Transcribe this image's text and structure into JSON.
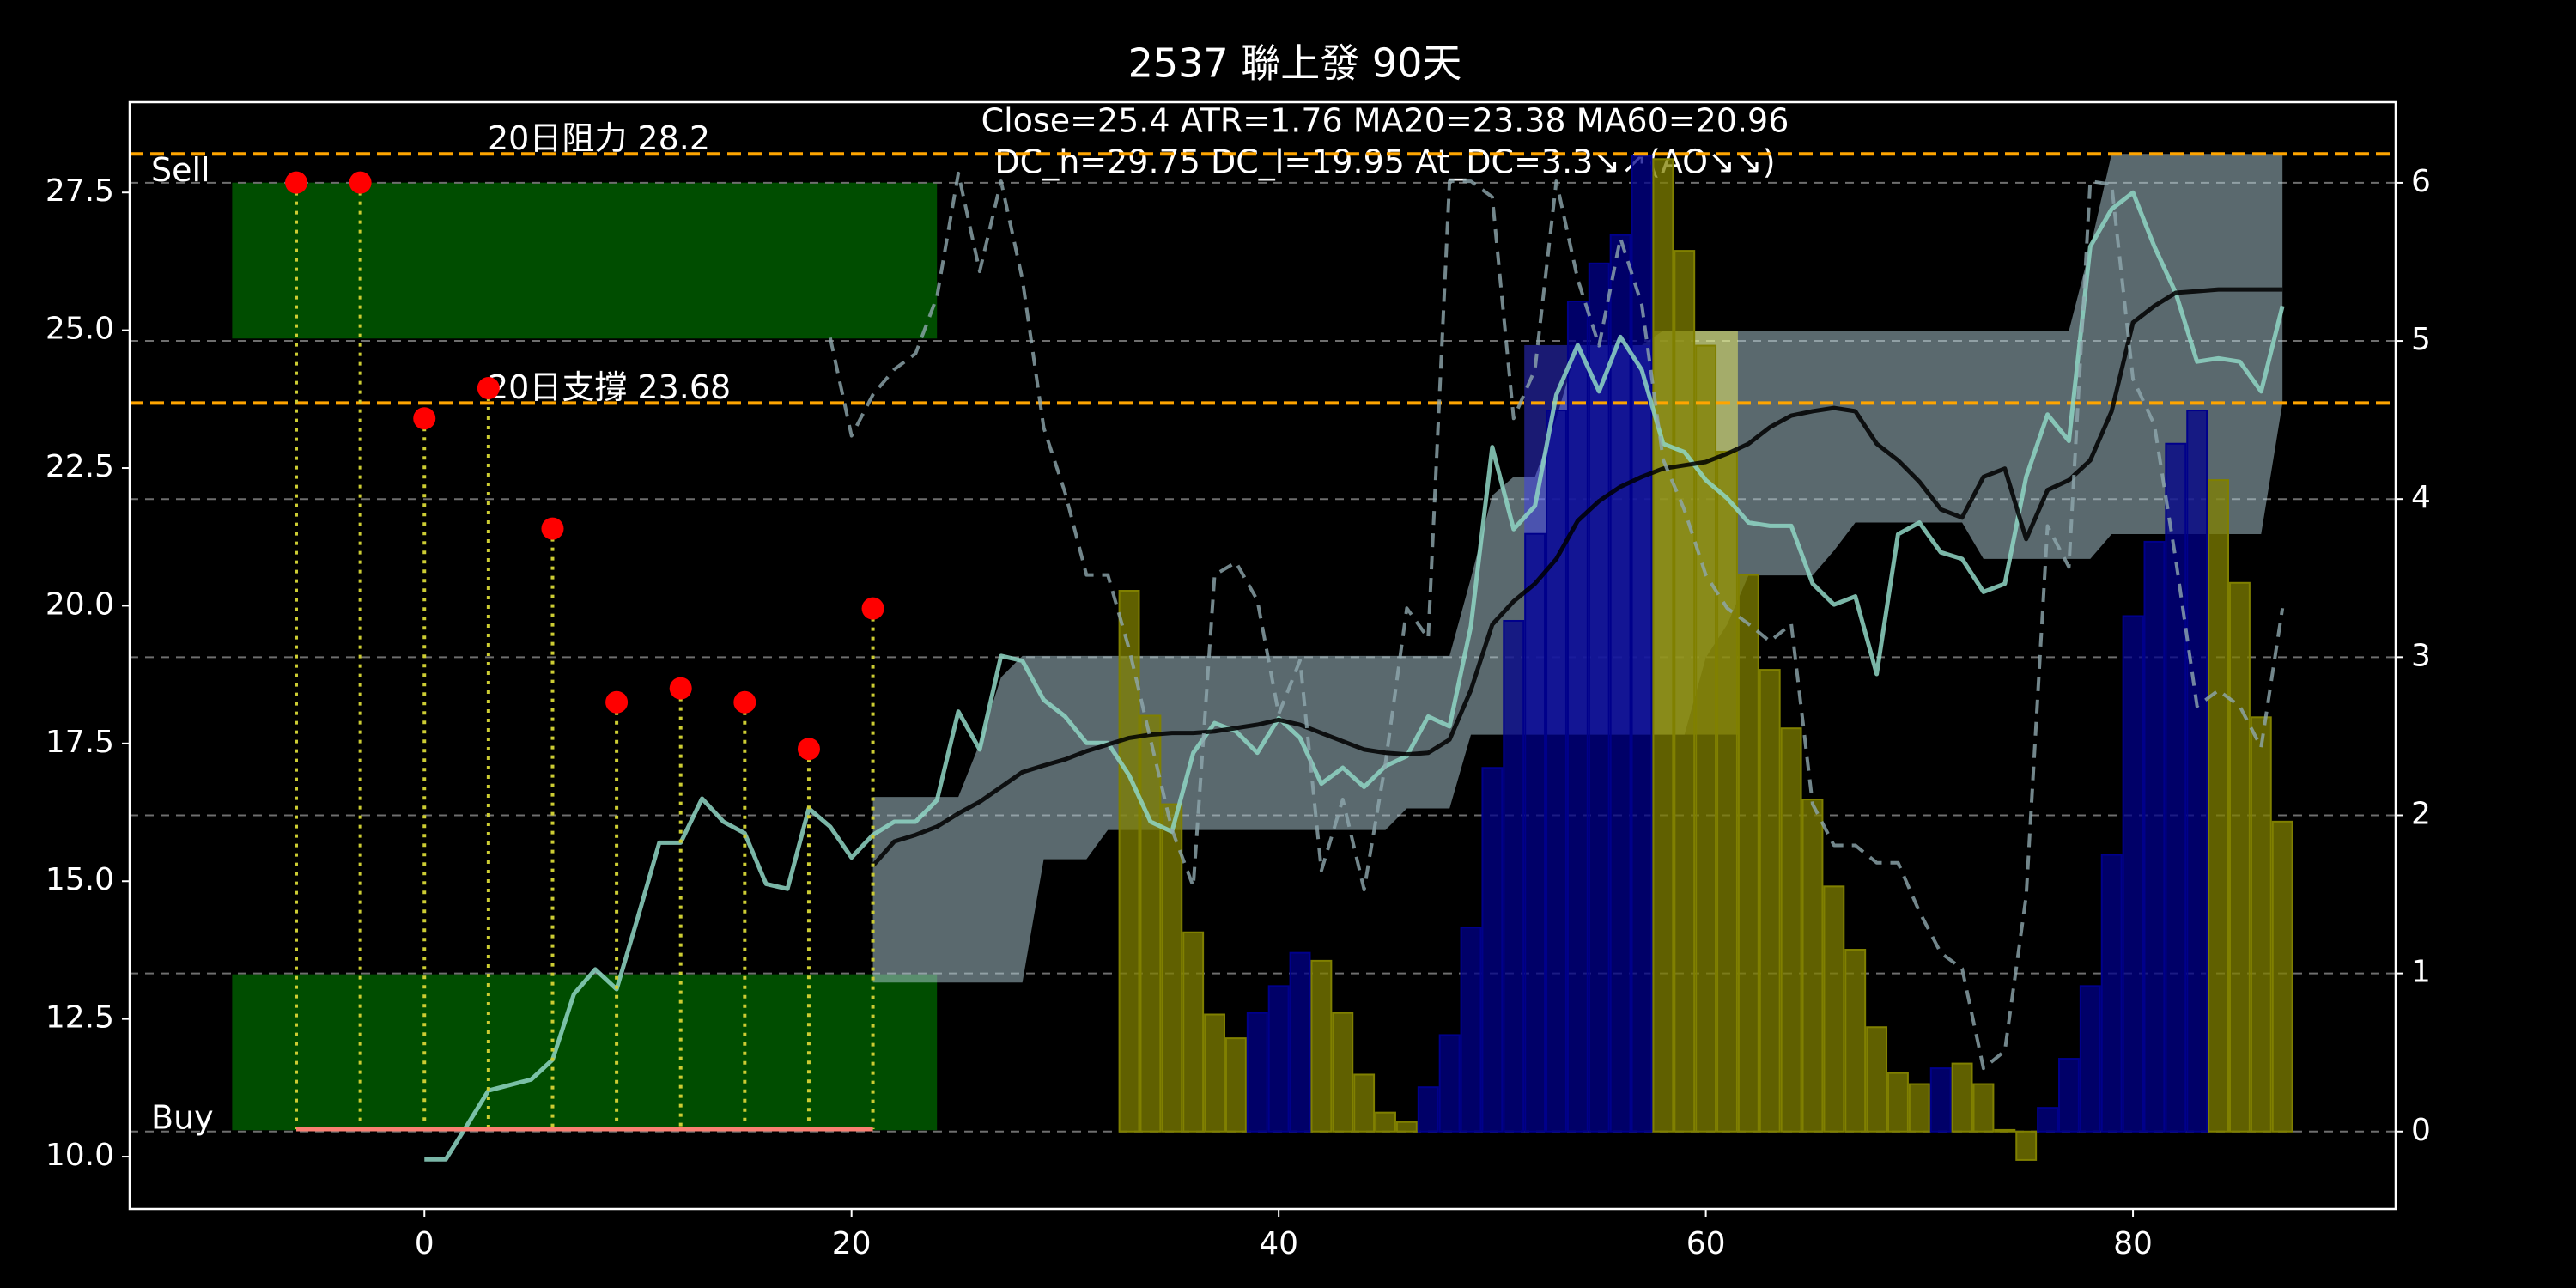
{
  "chart_data": {
    "type": "line",
    "title": "2537 聯上發 90天",
    "annotation": [
      "Close=25.4 ATR=1.76 MA20=23.38 MA60=20.96",
      "DC_h=29.75 DC_l=19.95 At_DC=3.3↘↗(AO↘↘)"
    ],
    "xlim": [
      -13.8,
      92.3
    ],
    "xticks": [
      0,
      20,
      40,
      60,
      80
    ],
    "ylim": [
      9.05,
      29.14
    ],
    "yticks": [
      {
        "value": 10,
        "label": "10.0"
      },
      {
        "value": 12.5,
        "label": "12.5"
      },
      {
        "value": 15,
        "label": "15.0"
      },
      {
        "value": 17.5,
        "label": "17.5"
      },
      {
        "value": 20,
        "label": "20.0"
      },
      {
        "value": 22.5,
        "label": "22.5"
      },
      {
        "value": 25,
        "label": "25.0"
      },
      {
        "value": 27.5,
        "label": "27.5"
      }
    ],
    "y2lim": [
      -0.49,
      6.51
    ],
    "y2ticks": [
      0,
      1,
      2,
      3,
      4,
      5,
      6
    ],
    "grid": true,
    "grid_color": "#6e6e6e",
    "x": [
      0,
      1,
      2,
      3,
      4,
      5,
      6,
      7,
      8,
      9,
      10,
      11,
      12,
      13,
      14,
      15,
      16,
      17,
      18,
      19,
      20,
      21,
      22,
      23,
      24,
      25,
      26,
      27,
      28,
      29,
      30,
      31,
      32,
      33,
      34,
      35,
      36,
      37,
      38,
      39,
      40,
      41,
      42,
      43,
      44,
      45,
      46,
      47,
      48,
      49,
      50,
      51,
      52,
      53,
      54,
      55,
      56,
      57,
      58,
      59,
      60,
      61,
      62,
      63,
      64,
      65,
      66,
      67,
      68,
      69,
      70,
      71,
      72,
      73,
      74,
      75,
      76,
      77,
      78,
      79,
      80,
      81,
      82,
      83,
      84,
      85,
      86,
      87
    ],
    "series": [
      {
        "color": "#8fd6c4",
        "values": [
          9.95,
          9.95,
          10.57,
          11.2,
          11.3,
          11.4,
          11.76,
          12.95,
          13.4,
          13.04,
          14.35,
          15.7,
          15.7,
          16.5,
          16.08,
          15.87,
          14.95,
          14.86,
          16.32,
          15.99,
          15.43,
          15.84,
          16.08,
          16.08,
          16.47,
          18.08,
          17.39,
          19.09,
          19.0,
          18.29,
          17.99,
          17.51,
          17.51,
          16.92,
          16.08,
          15.9,
          17.33,
          17.87,
          17.72,
          17.33,
          17.96,
          17.6,
          16.77,
          17.06,
          16.71,
          17.09,
          17.27,
          17.99,
          17.81,
          19.63,
          22.88,
          21.39,
          21.81,
          23.83,
          24.73,
          23.89,
          24.88,
          24.28,
          22.94,
          22.79,
          22.28,
          21.95,
          21.51,
          21.45,
          21.45,
          20.4,
          20.02,
          20.17,
          18.76,
          21.3,
          21.51,
          20.97,
          20.85,
          20.25,
          20.4,
          22.34,
          23.47,
          22.99,
          26.52,
          27.2,
          27.5,
          26.52,
          25.68,
          24.43,
          24.49,
          24.43,
          23.89,
          25.44
        ]
      },
      {
        "color": "#000000",
        "values": [
          null,
          null,
          null,
          null,
          null,
          null,
          null,
          null,
          null,
          null,
          null,
          null,
          null,
          null,
          null,
          null,
          null,
          null,
          null,
          null,
          null,
          15.28,
          15.72,
          15.84,
          15.99,
          16.23,
          16.44,
          16.71,
          16.98,
          17.1,
          17.21,
          17.36,
          17.48,
          17.6,
          17.66,
          17.69,
          17.69,
          17.72,
          17.78,
          17.84,
          17.93,
          17.84,
          17.69,
          17.54,
          17.39,
          17.33,
          17.3,
          17.33,
          17.57,
          18.47,
          19.66,
          20.08,
          20.4,
          20.85,
          21.54,
          21.9,
          22.16,
          22.34,
          22.49,
          22.55,
          22.61,
          22.76,
          22.94,
          23.24,
          23.45,
          23.53,
          23.59,
          23.53,
          22.94,
          22.64,
          22.25,
          21.75,
          21.6,
          22.34,
          22.49,
          21.21,
          22.1,
          22.28,
          22.64,
          23.53,
          25.14,
          25.44,
          25.68,
          25.71,
          25.74,
          25.74,
          25.74,
          25.74
        ]
      },
      {
        "color": "#8fa8ae",
        "dash": true,
        "axis": "y2",
        "values": [
          null,
          null,
          null,
          null,
          null,
          null,
          null,
          null,
          null,
          null,
          null,
          null,
          null,
          null,
          null,
          null,
          null,
          null,
          null,
          5.02,
          4.4,
          4.66,
          4.82,
          4.92,
          5.28,
          6.06,
          5.44,
          6.01,
          5.39,
          4.45,
          4.04,
          3.52,
          3.52,
          3.05,
          2.48,
          1.91,
          1.55,
          3.52,
          3.6,
          3.36,
          2.64,
          2.98,
          1.65,
          2.1,
          1.53,
          2.33,
          3.31,
          3.12,
          6.01,
          6.01,
          5.91,
          4.51,
          4.82,
          6.01,
          5.39,
          4.97,
          5.65,
          5.23,
          4.25,
          3.93,
          3.52,
          3.31,
          3.21,
          3.1,
          3.21,
          2.07,
          1.81,
          1.81,
          1.7,
          1.7,
          1.39,
          1.13,
          1.03,
          0.4,
          0.51,
          1.49,
          3.83,
          3.57,
          6.01,
          5.99,
          4.76,
          4.47,
          3.62,
          2.69,
          2.79,
          2.69,
          2.43,
          3.31
        ]
      }
    ],
    "band": {
      "color": "#b4d2dc",
      "upper": [
        null,
        null,
        null,
        null,
        null,
        null,
        null,
        null,
        null,
        null,
        null,
        null,
        null,
        null,
        null,
        null,
        null,
        null,
        null,
        null,
        null,
        16.53,
        16.53,
        16.53,
        16.53,
        16.53,
        17.5,
        18.7,
        19.09,
        19.09,
        19.09,
        19.09,
        19.09,
        19.09,
        19.09,
        19.09,
        19.09,
        19.09,
        19.09,
        19.09,
        19.09,
        19.09,
        19.09,
        19.09,
        19.09,
        19.09,
        19.09,
        19.09,
        19.09,
        20.5,
        22.0,
        22.34,
        22.34,
        23.4,
        24.73,
        24.73,
        24.73,
        24.73,
        24.99,
        24.99,
        24.99,
        24.99,
        24.99,
        24.99,
        24.99,
        24.99,
        24.99,
        24.99,
        24.99,
        24.99,
        24.99,
        24.99,
        24.99,
        24.99,
        24.99,
        24.99,
        24.99,
        24.99,
        26.5,
        28.2,
        28.2,
        28.2,
        28.2,
        28.2,
        28.2,
        28.2,
        28.2,
        28.2
      ],
      "lower": [
        null,
        null,
        null,
        null,
        null,
        null,
        null,
        null,
        null,
        null,
        null,
        null,
        null,
        null,
        null,
        null,
        null,
        null,
        null,
        null,
        null,
        13.16,
        13.16,
        13.16,
        13.16,
        13.16,
        13.16,
        13.16,
        13.16,
        15.4,
        15.4,
        15.4,
        15.93,
        15.93,
        15.93,
        15.93,
        15.93,
        15.93,
        15.93,
        15.93,
        15.93,
        15.93,
        15.93,
        15.93,
        15.93,
        15.93,
        16.32,
        16.32,
        16.32,
        17.66,
        17.66,
        17.66,
        17.66,
        17.66,
        17.66,
        17.66,
        17.66,
        17.66,
        17.66,
        17.66,
        19.06,
        19.66,
        20.55,
        20.55,
        20.55,
        20.55,
        21.0,
        21.51,
        21.51,
        21.51,
        21.51,
        21.51,
        21.51,
        20.85,
        20.85,
        20.85,
        20.85,
        20.85,
        20.85,
        21.3,
        21.3,
        21.3,
        21.3,
        21.3,
        21.3,
        21.3,
        21.3,
        23.68
      ]
    },
    "bars": {
      "axis": "y2",
      "x": [
        33,
        34,
        35,
        36,
        37,
        38,
        39,
        40,
        41,
        42,
        43,
        44,
        45,
        46,
        47,
        48,
        49,
        50,
        51,
        52,
        53,
        54,
        55,
        56,
        57,
        58,
        59,
        60,
        61,
        62,
        63,
        64,
        65,
        66,
        67,
        68,
        69,
        70,
        71,
        72,
        73,
        74,
        75,
        76,
        77,
        78,
        79,
        80,
        81,
        82,
        83,
        84,
        85,
        86,
        87
      ],
      "values": [
        3.42,
        2.63,
        2.07,
        1.26,
        0.74,
        0.59,
        0.75,
        0.92,
        1.13,
        1.08,
        0.75,
        0.36,
        0.12,
        0.06,
        0.28,
        0.61,
        1.29,
        2.3,
        3.23,
        3.78,
        4.56,
        5.25,
        5.49,
        5.67,
        6.17,
        6.15,
        5.57,
        4.97,
        4.3,
        3.52,
        2.92,
        2.55,
        2.1,
        1.55,
        1.15,
        0.66,
        0.37,
        0.3,
        0.4,
        0.43,
        0.3,
        0.01,
        -0.18,
        0.15,
        0.46,
        0.92,
        1.75,
        3.26,
        3.73,
        4.35,
        4.56,
        4.12,
        3.47,
        2.62,
        1.96
      ],
      "colors": [
        "#808000",
        "#808000",
        "#808000",
        "#808000",
        "#808000",
        "#808000",
        "#00008b",
        "#00008b",
        "#00008b",
        "#808000",
        "#808000",
        "#808000",
        "#808000",
        "#808000",
        "#00008b",
        "#00008b",
        "#00008b",
        "#00008b",
        "#00008b",
        "#00008b",
        "#00008b",
        "#00008b",
        "#00008b",
        "#00008b",
        "#00008b",
        "#808000",
        "#808000",
        "#808000",
        "#808000",
        "#808000",
        "#808000",
        "#808000",
        "#808000",
        "#808000",
        "#808000",
        "#808000",
        "#808000",
        "#808000",
        "#00008b",
        "#808000",
        "#808000",
        "#808000",
        "#808000",
        "#00008b",
        "#00008b",
        "#00008b",
        "#00008b",
        "#00008b",
        "#00008b",
        "#00008b",
        "#00008b",
        "#808000",
        "#808000",
        "#808000",
        "#808000"
      ]
    },
    "zones": [
      {
        "x": [
          -9,
          24
        ],
        "y": [
          24.85,
          27.68
        ],
        "color": "#004d00",
        "label": "Sell"
      },
      {
        "x": [
          -9,
          24
        ],
        "y": [
          10.48,
          13.31
        ],
        "color": "#004d00",
        "label": "Buy"
      },
      {
        "x": [
          51.5,
          57.5
        ],
        "y": [
          17.66,
          24.73
        ],
        "color": "#3a3aff"
      },
      {
        "x": [
          57.5,
          61.5
        ],
        "y": [
          17.66,
          24.99
        ],
        "color": "#ffff66"
      }
    ],
    "hlines": [
      {
        "value": 28.2,
        "label": "20日阻力 28.2",
        "color": "#ffa500"
      },
      {
        "value": 23.68,
        "label": "20日支撐 23.68",
        "color": "#ffa500"
      }
    ],
    "markers": {
      "x": [
        -6,
        -3,
        0,
        3,
        6,
        9,
        12,
        15,
        18,
        21
      ],
      "values": [
        27.68,
        27.68,
        23.4,
        23.95,
        21.4,
        18.25,
        18.5,
        18.25,
        17.4,
        19.95
      ],
      "color": "#ff0000",
      "stem_color": "#cccc33"
    },
    "floor": {
      "x": [
        -6,
        21
      ],
      "value": 10.5,
      "color": "#fa8072"
    }
  }
}
